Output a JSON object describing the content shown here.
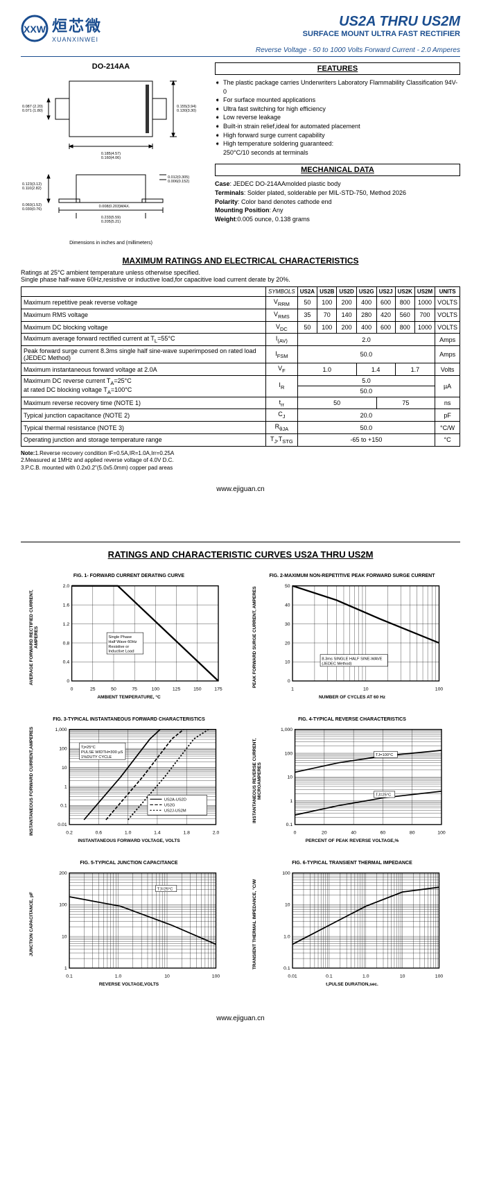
{
  "logo": {
    "cn": "烜芯微",
    "en": "XUANXINWEI"
  },
  "header": {
    "title": "US2A THRU US2M",
    "subtitle": "SURFACE MOUNT ULTRA FAST RECTIFIER",
    "specs": "Reverse Voltage - 50 to 1000 Volts    Forward Current - 2.0 Amperes"
  },
  "package": {
    "label": "DO-214AA",
    "dim_note": "Dimensions in inches and (millimeters)",
    "top_dims": {
      "w": "0.185(4.57)\n0.160(4.06)",
      "h": "0.155(3.94)\n0.130(3.30)",
      "lead": "0.087 (2.20)\n0.071 (1.80)"
    },
    "side_dims": {
      "h": "0.123(3.12)\n0.110(2.82)",
      "t1": "0.012(0.305)\n0.006(0.152)",
      "t2": "0.060(1.52)\n0.030(0.76)",
      "t3": "0.008(0.203)MAX.",
      "w": "0.233(5.59)\n0.205(5.21)"
    }
  },
  "features": {
    "title": "FEATURES",
    "items": [
      "The plastic package carries Underwriters Laboratory Flammability Classification 94V-0",
      "For surface mounted applications",
      "Ultra fast switching for high efficiency",
      "Low reverse leakage",
      "Built-in strain relief,ideal for automated placement",
      "High forward surge current capability",
      "High temperature soldering guaranteed:\n250°C/10 seconds at terminals"
    ]
  },
  "mechanical": {
    "title": "MECHANICAL DATA",
    "rows": [
      {
        "k": "Case",
        "v": ": JEDEC DO-214AAmolded plastic body"
      },
      {
        "k": "Terminals",
        "v": ": Solder plated, solderable per MIL-STD-750, Method 2026"
      },
      {
        "k": "Polarity",
        "v": ": Color band denotes cathode end"
      },
      {
        "k": "Mounting Position",
        "v": ": Any"
      },
      {
        "k": "Weight",
        "v": ":0.005 ounce, 0.138 grams"
      }
    ]
  },
  "ratings": {
    "title": "MAXIMUM RATINGS AND ELECTRICAL CHARACTERISTICS",
    "intro": "Ratings at 25°C ambient temperature unless otherwise specified.\nSingle phase half-wave 60Hz,resistive or inductive load,for capacitive load current derate by 20%.",
    "symbols_hdr": "SYMBOLS",
    "units_hdr": "UNITS",
    "parts": [
      "US2A",
      "US2B",
      "US2D",
      "US2G",
      "US2J",
      "US2K",
      "US2M"
    ],
    "rows": [
      {
        "param": "Maximum repetitive peak reverse voltage",
        "sym": "V<sub>RRM</sub>",
        "vals": [
          "50",
          "100",
          "200",
          "400",
          "600",
          "800",
          "1000"
        ],
        "unit": "VOLTS"
      },
      {
        "param": "Maximum RMS voltage",
        "sym": "V<sub>RMS</sub>",
        "vals": [
          "35",
          "70",
          "140",
          "280",
          "420",
          "560",
          "700"
        ],
        "unit": "VOLTS"
      },
      {
        "param": "Maximum DC blocking voltage",
        "sym": "V<sub>DC</sub>",
        "vals": [
          "50",
          "100",
          "200",
          "400",
          "600",
          "800",
          "1000"
        ],
        "unit": "VOLTS"
      },
      {
        "param": "Maximum average forward rectified current at T<sub>L</sub>=55°C",
        "sym": "I<sub>(AV)</sub>",
        "span": "2.0",
        "unit": "Amps"
      },
      {
        "param": "Peak forward surge current 8.3ms single half sine-wave superimposed on rated load (JEDEC Method)",
        "sym": "I<sub>FSM</sub>",
        "span": "50.0",
        "unit": "Amps"
      },
      {
        "param": "Maximum instantaneous forward voltage at 2.0A",
        "sym": "V<sub>F</sub>",
        "groups": [
          {
            "c": 3,
            "v": "1.0"
          },
          {
            "c": 2,
            "v": "1.4"
          },
          {
            "c": 2,
            "v": "1.7"
          }
        ],
        "unit": "Volts"
      },
      {
        "param": "Maximum DC reverse current     T<sub>A</sub>=25°C\nat rated DC blocking voltage      T<sub>A</sub>=100°C",
        "sym": "I<sub>R</sub>",
        "stacked": [
          "5.0",
          "50.0"
        ],
        "unit": "µA"
      },
      {
        "param": "Maximum reverse recovery time     (NOTE 1)",
        "sym": "t<sub>rr</sub>",
        "groups": [
          {
            "c": 4,
            "v": "50"
          },
          {
            "c": 3,
            "v": "75"
          }
        ],
        "unit": "ns"
      },
      {
        "param": "Typical junction capacitance (NOTE 2)",
        "sym": "C<sub>J</sub>",
        "span": "20.0",
        "unit": "pF"
      },
      {
        "param": "Typical thermal resistance (NOTE 3)",
        "sym": "R<sub>θJA</sub>",
        "span": "50.0",
        "unit": "°C/W"
      },
      {
        "param": "Operating junction and storage temperature range",
        "sym": "T<sub>J</sub>,T<sub>STG</sub>",
        "span": "-65 to +150",
        "unit": "°C"
      }
    ],
    "notes": "Note:1.Reverse recovery condition IF=0.5A,IR=1.0A,Irr=0.25A\n         2.Measured at 1MHz and applied reverse voltage of 4.0V D.C.\n         3.P.C.B. mounted with 0.2x0.2\"(5.0x5.0mm) copper pad areas"
  },
  "footer": "www.ejiguan.cn",
  "curves": {
    "title": "RATINGS AND CHARACTERISTIC CURVES US2A THRU US2M",
    "charts": [
      {
        "title": "FIG. 1- FORWARD CURRENT DERATING CURVE",
        "yLabel": "AVERAGE FORWARD RECTIFIED CURRENT, AMPERES",
        "xLabel": "AMBIENT TEMPERATURE, °C",
        "xType": "linear",
        "yType": "linear",
        "xTicks": [
          "0",
          "25",
          "50",
          "75",
          "100",
          "125",
          "150",
          "175"
        ],
        "yTicks": [
          "0",
          "0.4",
          "0.8",
          "1.2",
          "1.6",
          "2.0"
        ],
        "note": "Single Phase\nHalf Wave 60Hz\nResistive or\nInductive Load",
        "notePos": [
          25,
          55
        ],
        "series": [
          {
            "pts": [
              [
                0,
                0
              ],
              [
                31.4,
                0
              ],
              [
                100,
                100
              ]
            ],
            "w": 2
          }
        ]
      },
      {
        "title": "FIG. 2-MAXIMUM NON-REPETITIVE PEAK FORWARD SURGE CURRENT",
        "yLabel": "PEAK FORWARD SURGE CURRENT, AMPERES",
        "xLabel": "NUMBER OF CYCLES AT 60 Hz",
        "xType": "log",
        "yType": "linear",
        "xTicks": [
          "1",
          "10",
          "100"
        ],
        "yTicks": [
          "0",
          "10",
          "20",
          "30",
          "40",
          "50"
        ],
        "note": "8.3ms SINGLE HALF SINE-WAVE\n(JEDEC Method)",
        "notePos": [
          20,
          78
        ],
        "series": [
          {
            "pts": [
              [
                0,
                0
              ],
              [
                30,
                15
              ],
              [
                60,
                35
              ],
              [
                100,
                60
              ]
            ],
            "w": 2
          }
        ]
      },
      {
        "title": "FIG. 3-TYPICAL INSTANTANEOUS FORWARD CHARACTERISTICS",
        "yLabel": "INSTANTANEOUS FORWARD CURRENT,AMPERES",
        "xLabel": "INSTANTANEOUS FORWARD VOLTAGE, VOLTS",
        "xType": "linear",
        "yType": "log",
        "xTicks": [
          "0.2",
          "0.6",
          "1.0",
          "1.4",
          "1.8",
          "2.0"
        ],
        "yTicks": [
          "0.01",
          "0.1",
          "1",
          "10",
          "100",
          "1,000"
        ],
        "note": "Tj=25°C\nPULSE WIDTH=300 µS\n1%DUTY CYCLE",
        "notePos": [
          8,
          20
        ],
        "legend": [
          "US2A-US2D",
          "US2G",
          "US2J-US2M"
        ],
        "series": [
          {
            "pts": [
              [
                10,
                95
              ],
              [
                35,
                50
              ],
              [
                55,
                10
              ],
              [
                62,
                0
              ]
            ],
            "w": 1.5
          },
          {
            "pts": [
              [
                25,
                95
              ],
              [
                50,
                50
              ],
              [
                70,
                10
              ],
              [
                78,
                0
              ]
            ],
            "w": 1.5,
            "dash": "4,2"
          },
          {
            "pts": [
              [
                40,
                95
              ],
              [
                65,
                50
              ],
              [
                85,
                10
              ],
              [
                95,
                0
              ]
            ],
            "w": 1.5,
            "dash": "2,2"
          }
        ]
      },
      {
        "title": "FIG. 4-TYPICAL REVERSE CHARACTERISTICS",
        "yLabel": "INSTANTANEOUS REVERSE CURRENT, MICROAMPERES",
        "xLabel": "PERCENT OF PEAK REVERSE VOLTAGE,%",
        "xType": "linear",
        "yType": "log",
        "xTicks": [
          "0",
          "20",
          "40",
          "60",
          "80",
          "100"
        ],
        "yTicks": [
          "0.1",
          "1",
          "10",
          "100",
          "1,000"
        ],
        "labels": [
          {
            "t": "TJ=100°C",
            "p": [
              55,
              28
            ]
          },
          {
            "t": "TJ=25°C",
            "p": [
              55,
              70
            ]
          }
        ],
        "series": [
          {
            "pts": [
              [
                0,
                45
              ],
              [
                30,
                35
              ],
              [
                60,
                28
              ],
              [
                100,
                22
              ]
            ],
            "w": 1.5
          },
          {
            "pts": [
              [
                0,
                90
              ],
              [
                30,
                80
              ],
              [
                60,
                72
              ],
              [
                100,
                65
              ]
            ],
            "w": 1.5
          }
        ]
      },
      {
        "title": "FIG. 5-TYPICAL JUNCTION CAPACITANCE",
        "yLabel": "JUNCTION CAPACITANCE, pF",
        "xLabel": "REVERSE VOLTAGE,VOLTS",
        "xType": "log",
        "yType": "log",
        "xTicks": [
          "0.1",
          "1.0",
          "10",
          "100"
        ],
        "yTicks": [
          "1",
          "10",
          "100",
          "200"
        ],
        "labels": [
          {
            "t": "TJ=25°C",
            "p": [
              60,
              18
            ]
          }
        ],
        "series": [
          {
            "pts": [
              [
                0,
                25
              ],
              [
                35,
                35
              ],
              [
                70,
                55
              ],
              [
                100,
                75
              ]
            ],
            "w": 1.5
          }
        ]
      },
      {
        "title": "FIG. 6-TYPICAL TRANSIENT THERMAL IMPEDANCE",
        "yLabel": "TRANSIENT THERMAL IMPEDANCE, °C/W",
        "xLabel": "t,PULSE DURATION,sec.",
        "xType": "log",
        "yType": "log",
        "xTicks": [
          "0.01",
          "0.1",
          "1.0",
          "10",
          "100"
        ],
        "yTicks": [
          "0.1",
          "1.0",
          "10",
          "100"
        ],
        "series": [
          {
            "pts": [
              [
                0,
                75
              ],
              [
                25,
                55
              ],
              [
                50,
                35
              ],
              [
                75,
                20
              ],
              [
                100,
                15
              ]
            ],
            "w": 1.5
          }
        ]
      }
    ]
  }
}
